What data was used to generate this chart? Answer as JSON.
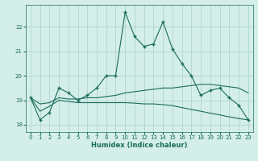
{
  "xlabel": "Humidex (Indice chaleur)",
  "background_color": "#d4eeea",
  "grid_color": "#aad0c8",
  "line_color": "#1a6b5a",
  "xlim": [
    -0.5,
    23.5
  ],
  "ylim": [
    17.7,
    22.9
  ],
  "yticks": [
    18,
    19,
    20,
    21,
    22
  ],
  "xticks": [
    0,
    1,
    2,
    3,
    4,
    5,
    6,
    7,
    8,
    9,
    10,
    11,
    12,
    13,
    14,
    15,
    16,
    17,
    18,
    19,
    20,
    21,
    22,
    23
  ],
  "main_x": [
    0,
    1,
    2,
    3,
    4,
    5,
    6,
    7,
    8,
    9,
    10,
    11,
    12,
    13,
    14,
    15,
    16,
    17,
    18,
    19,
    20,
    21,
    22,
    23
  ],
  "main_y": [
    19.1,
    18.2,
    18.5,
    19.5,
    19.3,
    19.0,
    19.2,
    19.5,
    20.0,
    20.0,
    22.6,
    21.6,
    21.2,
    21.3,
    22.2,
    21.1,
    20.5,
    20.0,
    19.2,
    19.4,
    19.5,
    19.1,
    18.8,
    18.2
  ],
  "line_up_x": [
    0,
    1,
    2,
    3,
    4,
    5,
    6,
    7,
    8,
    9,
    10,
    11,
    12,
    13,
    14,
    15,
    16,
    17,
    18,
    19,
    20,
    21,
    22,
    23
  ],
  "line_up_y": [
    19.1,
    18.85,
    18.9,
    19.1,
    19.05,
    19.05,
    19.1,
    19.1,
    19.15,
    19.2,
    19.3,
    19.35,
    19.4,
    19.45,
    19.5,
    19.5,
    19.55,
    19.6,
    19.65,
    19.65,
    19.6,
    19.55,
    19.5,
    19.3
  ],
  "line_down_x": [
    0,
    1,
    2,
    3,
    4,
    5,
    6,
    7,
    8,
    9,
    10,
    11,
    12,
    13,
    14,
    15,
    16,
    17,
    18,
    19,
    20,
    21,
    22,
    23
  ],
  "line_down_y": [
    19.1,
    18.55,
    18.75,
    19.0,
    18.95,
    18.9,
    18.9,
    18.9,
    18.9,
    18.9,
    18.9,
    18.88,
    18.85,
    18.85,
    18.82,
    18.78,
    18.7,
    18.62,
    18.55,
    18.47,
    18.4,
    18.32,
    18.25,
    18.2
  ]
}
